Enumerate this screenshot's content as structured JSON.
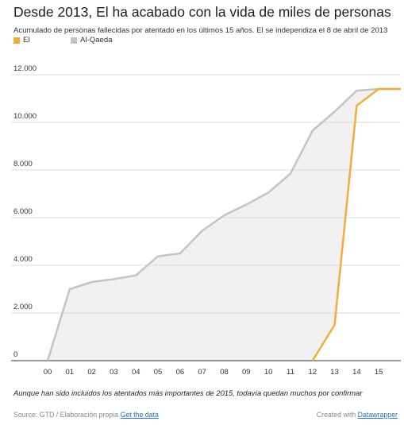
{
  "chart_data": {
    "type": "line",
    "title": "Desde 2013, El ha acabado con la vida de miles de personas",
    "subtitle": "Acumulado de personas fallecidas por atentado en los últimos 15 años. El se independiza el 8 de abril de 2013",
    "categories": [
      "00",
      "01",
      "02",
      "03",
      "04",
      "05",
      "06",
      "07",
      "08",
      "09",
      "10",
      "11",
      "12",
      "13",
      "14",
      "15"
    ],
    "x": [
      0,
      1,
      2,
      3,
      4,
      5,
      6,
      7,
      8,
      9,
      10,
      11,
      12,
      13,
      14,
      15,
      16
    ],
    "yticks": [
      0,
      2000,
      4000,
      6000,
      8000,
      10000,
      12000
    ],
    "ytick_labels": [
      "0",
      "2.000",
      "4.000",
      "6.000",
      "8.000",
      "10.000",
      "12.000"
    ],
    "ylim": [
      0,
      12700
    ],
    "xlim": [
      0,
      16
    ],
    "grid": true,
    "legend_position": "top-left",
    "series": [
      {
        "name": "EI",
        "color": "#f0ad3b",
        "x": [
          12,
          13,
          14,
          15,
          16
        ],
        "values": [
          0,
          1500,
          10700,
          11400,
          11400
        ]
      },
      {
        "name": "Al-Qaeda",
        "color": "#c4c4c4",
        "x": [
          0,
          1,
          2,
          3,
          4,
          5,
          6,
          7,
          8,
          9,
          10,
          11,
          12,
          13,
          14,
          15,
          16
        ],
        "values": [
          0,
          3000,
          3300,
          3420,
          3580,
          4380,
          4500,
          5450,
          6100,
          6550,
          7050,
          7850,
          9650,
          10450,
          11330,
          11400,
          11400
        ]
      }
    ],
    "fill_between": {
      "color": "#f1f1f1"
    }
  },
  "note": "Aunque han sido incluidos los atentados más importantes de 2015, todavía quedan muchos por confirmar",
  "footer": {
    "source_text": "Source: GTD / Elaboración propia",
    "source_link": "Get the data",
    "credit_text": "Created with",
    "credit_link": "Datawrapper"
  }
}
